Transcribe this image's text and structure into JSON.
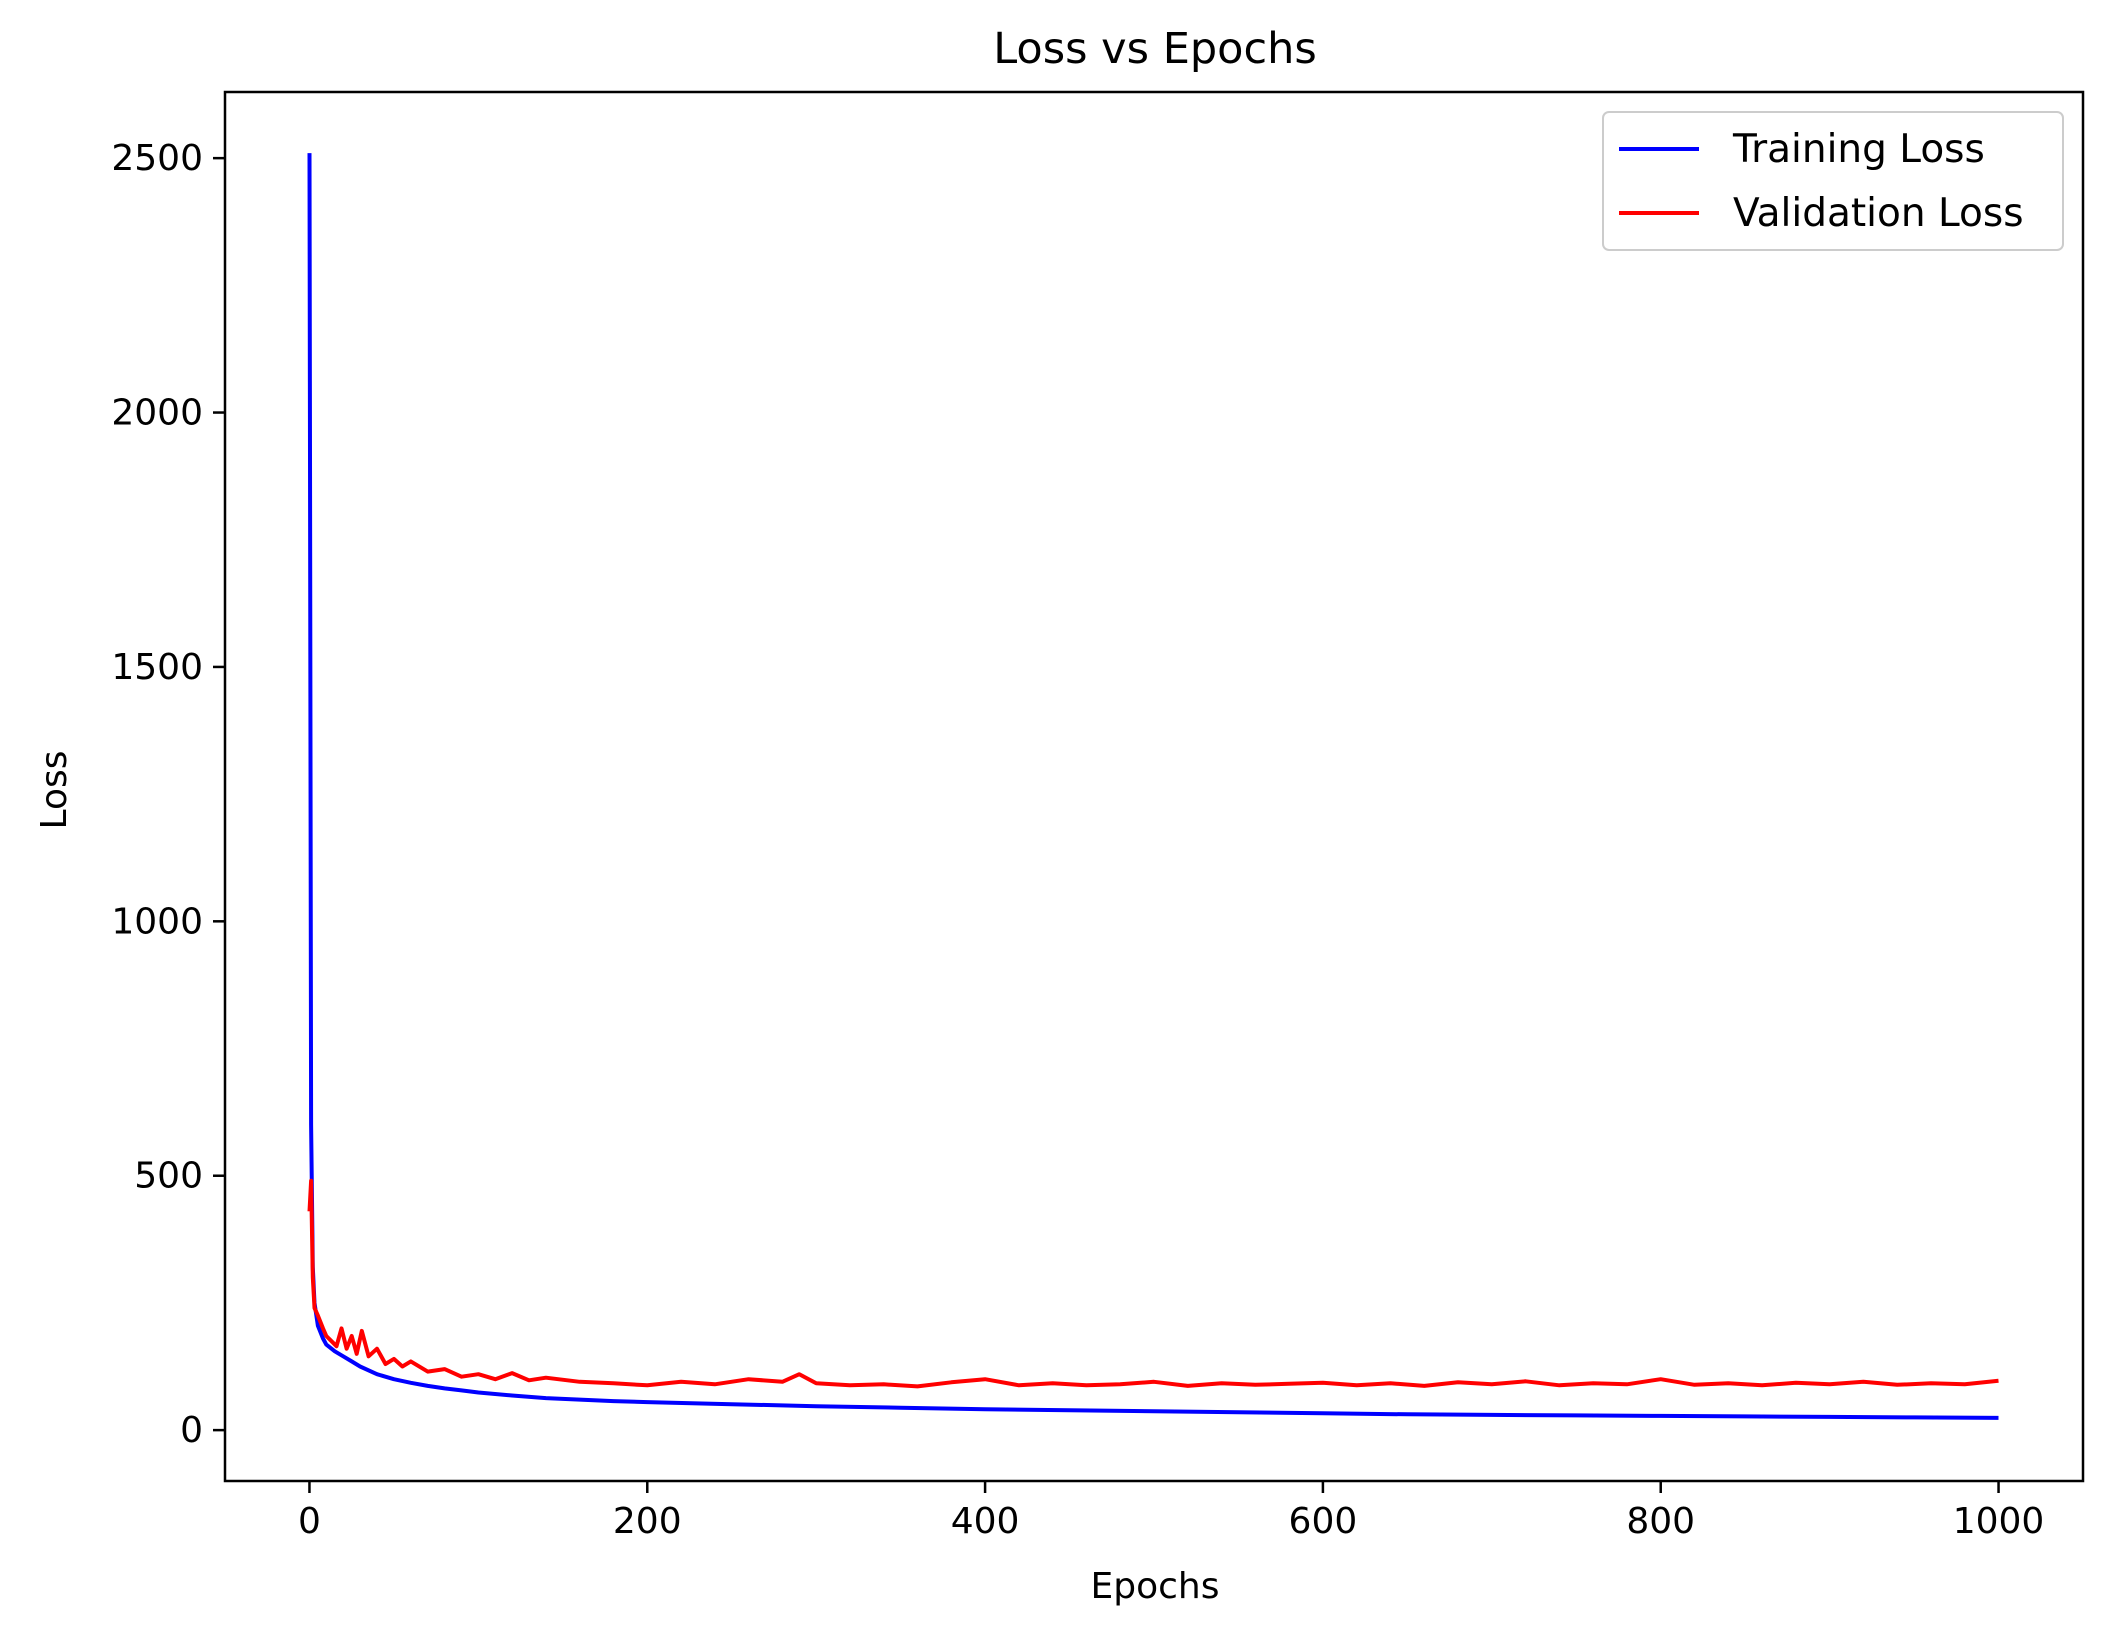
{
  "chart_data": {
    "type": "line",
    "title": "Loss vs Epochs",
    "xlabel": "Epochs",
    "ylabel": "Loss",
    "xlim": [
      -50,
      1050
    ],
    "ylim": [
      -100,
      2630
    ],
    "xticks": [
      0,
      200,
      400,
      600,
      800,
      1000
    ],
    "yticks": [
      0,
      500,
      1000,
      1500,
      2000,
      2500
    ],
    "grid": false,
    "legend_position": "top-right",
    "series": [
      {
        "name": "Training Loss",
        "color": "#0000ff",
        "x": [
          0,
          1,
          2,
          3,
          5,
          8,
          10,
          15,
          20,
          25,
          30,
          40,
          50,
          60,
          70,
          80,
          90,
          100,
          120,
          140,
          160,
          180,
          200,
          250,
          300,
          350,
          400,
          450,
          500,
          550,
          600,
          650,
          700,
          750,
          800,
          850,
          900,
          950,
          1000
        ],
        "y": [
          2510,
          600,
          320,
          250,
          205,
          180,
          168,
          155,
          145,
          135,
          125,
          110,
          100,
          93,
          87,
          82,
          78,
          74,
          68,
          63,
          60,
          57,
          55,
          51,
          47,
          44,
          41,
          39,
          37,
          35,
          33,
          31,
          30,
          29,
          28,
          27,
          26,
          25,
          24
        ]
      },
      {
        "name": "Validation Loss",
        "color": "#ff0000",
        "x": [
          0,
          1,
          2,
          3,
          5,
          8,
          10,
          13,
          16,
          19,
          22,
          25,
          28,
          31,
          35,
          40,
          45,
          50,
          55,
          60,
          70,
          80,
          90,
          100,
          110,
          120,
          130,
          140,
          160,
          180,
          200,
          220,
          240,
          260,
          280,
          290,
          300,
          320,
          340,
          360,
          380,
          400,
          420,
          440,
          460,
          480,
          500,
          520,
          540,
          560,
          580,
          600,
          620,
          640,
          660,
          680,
          700,
          720,
          740,
          760,
          780,
          800,
          820,
          840,
          860,
          880,
          900,
          920,
          940,
          960,
          980,
          1000
        ],
        "y": [
          430,
          490,
          300,
          240,
          225,
          200,
          185,
          175,
          165,
          200,
          160,
          185,
          150,
          195,
          145,
          160,
          130,
          140,
          125,
          135,
          115,
          120,
          105,
          110,
          100,
          112,
          98,
          103,
          95,
          92,
          88,
          95,
          90,
          100,
          95,
          110,
          92,
          88,
          90,
          86,
          94,
          100,
          88,
          92,
          88,
          90,
          95,
          87,
          92,
          89,
          91,
          93,
          88,
          92,
          87,
          94,
          90,
          96,
          88,
          92,
          90,
          100,
          89,
          92,
          88,
          93,
          90,
          95,
          89,
          92,
          90,
          97
        ]
      }
    ]
  }
}
